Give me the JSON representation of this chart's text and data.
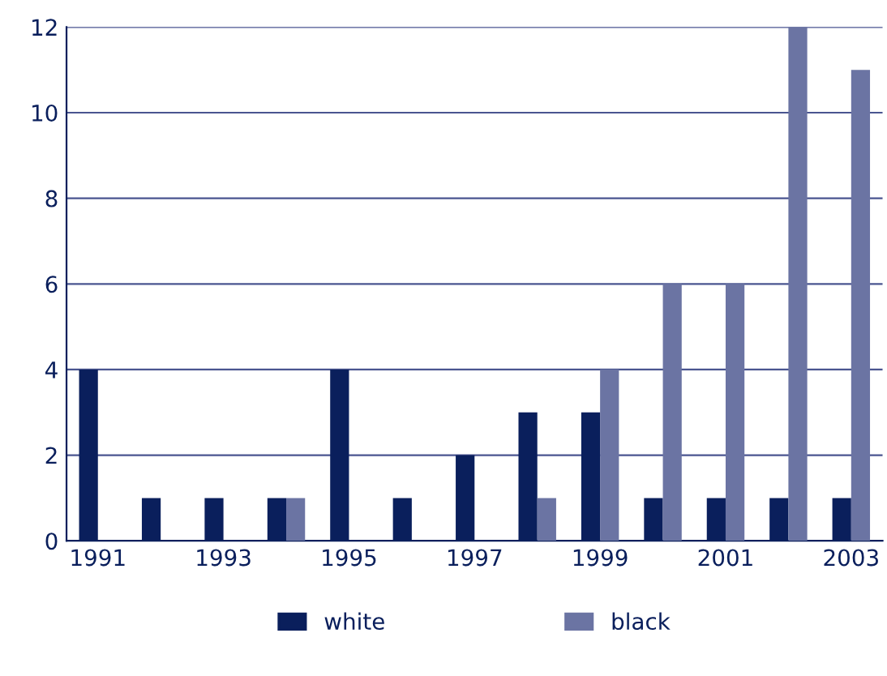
{
  "chart_data": {
    "type": "bar",
    "categories": [
      "1991",
      null,
      "1993",
      null,
      "1995",
      null,
      "1997",
      null,
      "1999",
      null,
      "2001",
      null,
      "2003"
    ],
    "series": [
      {
        "name": "white",
        "color": "#0a1f5c",
        "values": [
          4,
          1,
          1,
          1,
          4,
          1,
          2,
          3,
          3,
          1,
          1,
          1,
          1
        ]
      },
      {
        "name": "black",
        "color": "#6b74a3",
        "values": [
          0,
          0,
          0,
          1,
          0,
          0,
          0,
          1,
          4,
          6,
          6,
          12,
          11
        ]
      }
    ],
    "ylim": [
      0,
      12
    ],
    "yticks": [
      0,
      2,
      4,
      6,
      8,
      10,
      12
    ],
    "grid": "y",
    "legend": "bottom"
  }
}
